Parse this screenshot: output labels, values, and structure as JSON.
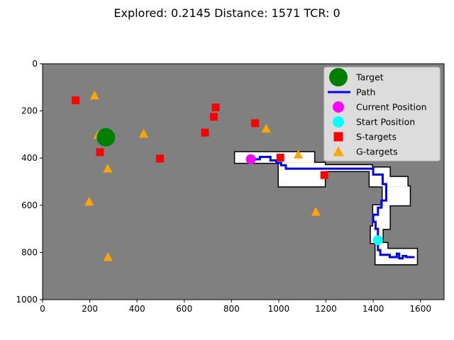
{
  "chart_data": {
    "type": "scatter",
    "title": "Explored: 0.2145  Distance: 1571  TCR: 0",
    "xlabel": "",
    "ylabel": "",
    "xlim": [
      0,
      1700
    ],
    "ylim": [
      1000,
      0
    ],
    "y_inverted": true,
    "grid": false,
    "background_color": "#808080",
    "x_ticks": [
      0,
      200,
      400,
      600,
      800,
      1000,
      1200,
      1400,
      1600
    ],
    "y_ticks": [
      0,
      200,
      400,
      600,
      800,
      1000
    ],
    "legend_position": "top-right",
    "series": [
      {
        "name": "Target",
        "marker": "circle",
        "color": "#008000",
        "points": [
          [
            268,
            312
          ]
        ]
      },
      {
        "name": "Path",
        "marker": "line",
        "color": "#0000ff",
        "points": [
          [
            885,
            405
          ],
          [
            920,
            405
          ],
          [
            920,
            395
          ],
          [
            965,
            395
          ],
          [
            965,
            410
          ],
          [
            990,
            410
          ],
          [
            990,
            420
          ],
          [
            1010,
            420
          ],
          [
            1010,
            430
          ],
          [
            1030,
            430
          ],
          [
            1030,
            445
          ],
          [
            1400,
            445
          ],
          [
            1400,
            470
          ],
          [
            1440,
            470
          ],
          [
            1440,
            510
          ],
          [
            1455,
            510
          ],
          [
            1455,
            580
          ],
          [
            1435,
            580
          ],
          [
            1435,
            610
          ],
          [
            1420,
            610
          ],
          [
            1420,
            640
          ],
          [
            1400,
            640
          ],
          [
            1400,
            670
          ],
          [
            1410,
            670
          ],
          [
            1410,
            700
          ],
          [
            1420,
            700
          ],
          [
            1420,
            750
          ],
          [
            1420,
            790
          ],
          [
            1430,
            790
          ],
          [
            1430,
            810
          ],
          [
            1470,
            810
          ],
          [
            1470,
            820
          ],
          [
            1500,
            820
          ],
          [
            1500,
            805
          ],
          [
            1510,
            805
          ],
          [
            1510,
            825
          ],
          [
            1525,
            825
          ],
          [
            1525,
            815
          ],
          [
            1540,
            815
          ],
          [
            1540,
            820
          ],
          [
            1575,
            820
          ]
        ]
      },
      {
        "name": "Current Position",
        "marker": "circle",
        "color": "#ff00ff",
        "points": [
          [
            882,
            405
          ]
        ]
      },
      {
        "name": "Start Position",
        "marker": "circle",
        "color": "#00ffff",
        "points": [
          [
            1420,
            748
          ]
        ]
      },
      {
        "name": "S-targets",
        "marker": "square",
        "color": "#ff0000",
        "points": [
          [
            140,
            155
          ],
          [
            733,
            185
          ],
          [
            725,
            225
          ],
          [
            688,
            292
          ],
          [
            900,
            252
          ],
          [
            243,
            375
          ],
          [
            497,
            402
          ],
          [
            1007,
            398
          ],
          [
            1193,
            472
          ]
        ]
      },
      {
        "name": "G-targets",
        "marker": "triangle",
        "color": "#ffa500",
        "points": [
          [
            220,
            135
          ],
          [
            235,
            302
          ],
          [
            428,
            297
          ],
          [
            947,
            275
          ],
          [
            1083,
            385
          ],
          [
            276,
            445
          ],
          [
            197,
            585
          ],
          [
            1157,
            628
          ],
          [
            277,
            820
          ]
        ]
      }
    ],
    "occupancy_map": {
      "free_color": "#ffffff",
      "wall_color": "#000000"
    }
  }
}
